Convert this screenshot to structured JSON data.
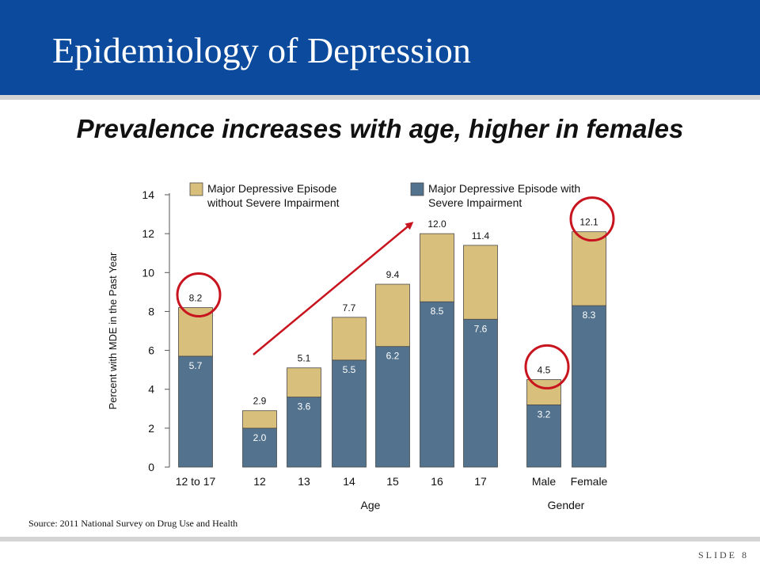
{
  "slide": {
    "title": "Epidemiology of Depression",
    "subtitle": "Prevalence increases with age, higher in females",
    "source": "Source: 2011 National Survey on Drug Use and Health",
    "slide_label": "SLIDE",
    "slide_number": "8"
  },
  "colors": {
    "header": "#0b4a9c",
    "without_severe": "#d9bf7c",
    "with_severe": "#52728e",
    "highlight_circle": "#c8141e",
    "trend_arrow": "#c8141e"
  },
  "chart_data": {
    "type": "bar",
    "stacked": true,
    "ylabel": "Percent with MDE in the Past Year",
    "ylim": [
      0,
      14
    ],
    "yticks": [
      0,
      2,
      4,
      6,
      8,
      10,
      12,
      14
    ],
    "groups": [
      {
        "label": "",
        "categories": [
          "12 to 17"
        ]
      },
      {
        "label": "Age",
        "categories": [
          "12",
          "13",
          "14",
          "15",
          "16",
          "17"
        ]
      },
      {
        "label": "Gender",
        "categories": [
          "Male",
          "Female"
        ]
      }
    ],
    "categories": [
      "12 to 17",
      "12",
      "13",
      "14",
      "15",
      "16",
      "17",
      "Male",
      "Female"
    ],
    "series": [
      {
        "name": "Major Depressive Episode with Severe Impairment",
        "values": [
          5.7,
          2.0,
          3.6,
          5.5,
          6.2,
          8.5,
          7.6,
          3.2,
          8.3
        ]
      },
      {
        "name": "Major Depressive Episode without Severe Impairment",
        "values": [
          2.5,
          0.9,
          1.5,
          2.2,
          3.2,
          3.5,
          3.8,
          1.3,
          3.8
        ]
      }
    ],
    "value_labels": {
      "with_severe": [
        "5.7",
        "2.0",
        "3.6",
        "5.5",
        "6.2",
        "8.5",
        "7.6",
        "3.2",
        "8.3"
      ],
      "totals": [
        "8.2",
        "2.9",
        "5.1",
        "7.7",
        "9.4",
        "12.0",
        "11.4",
        "4.5",
        "12.1"
      ]
    },
    "legend": {
      "without_severe": [
        "Major Depressive Episode",
        "without Severe Impairment"
      ],
      "with_severe": [
        "Major Depressive Episode with",
        "Severe Impairment"
      ]
    },
    "highlighted": [
      "12 to 17",
      "Male",
      "Female"
    ],
    "trend_arrow": {
      "from": "12",
      "to": "16"
    }
  }
}
